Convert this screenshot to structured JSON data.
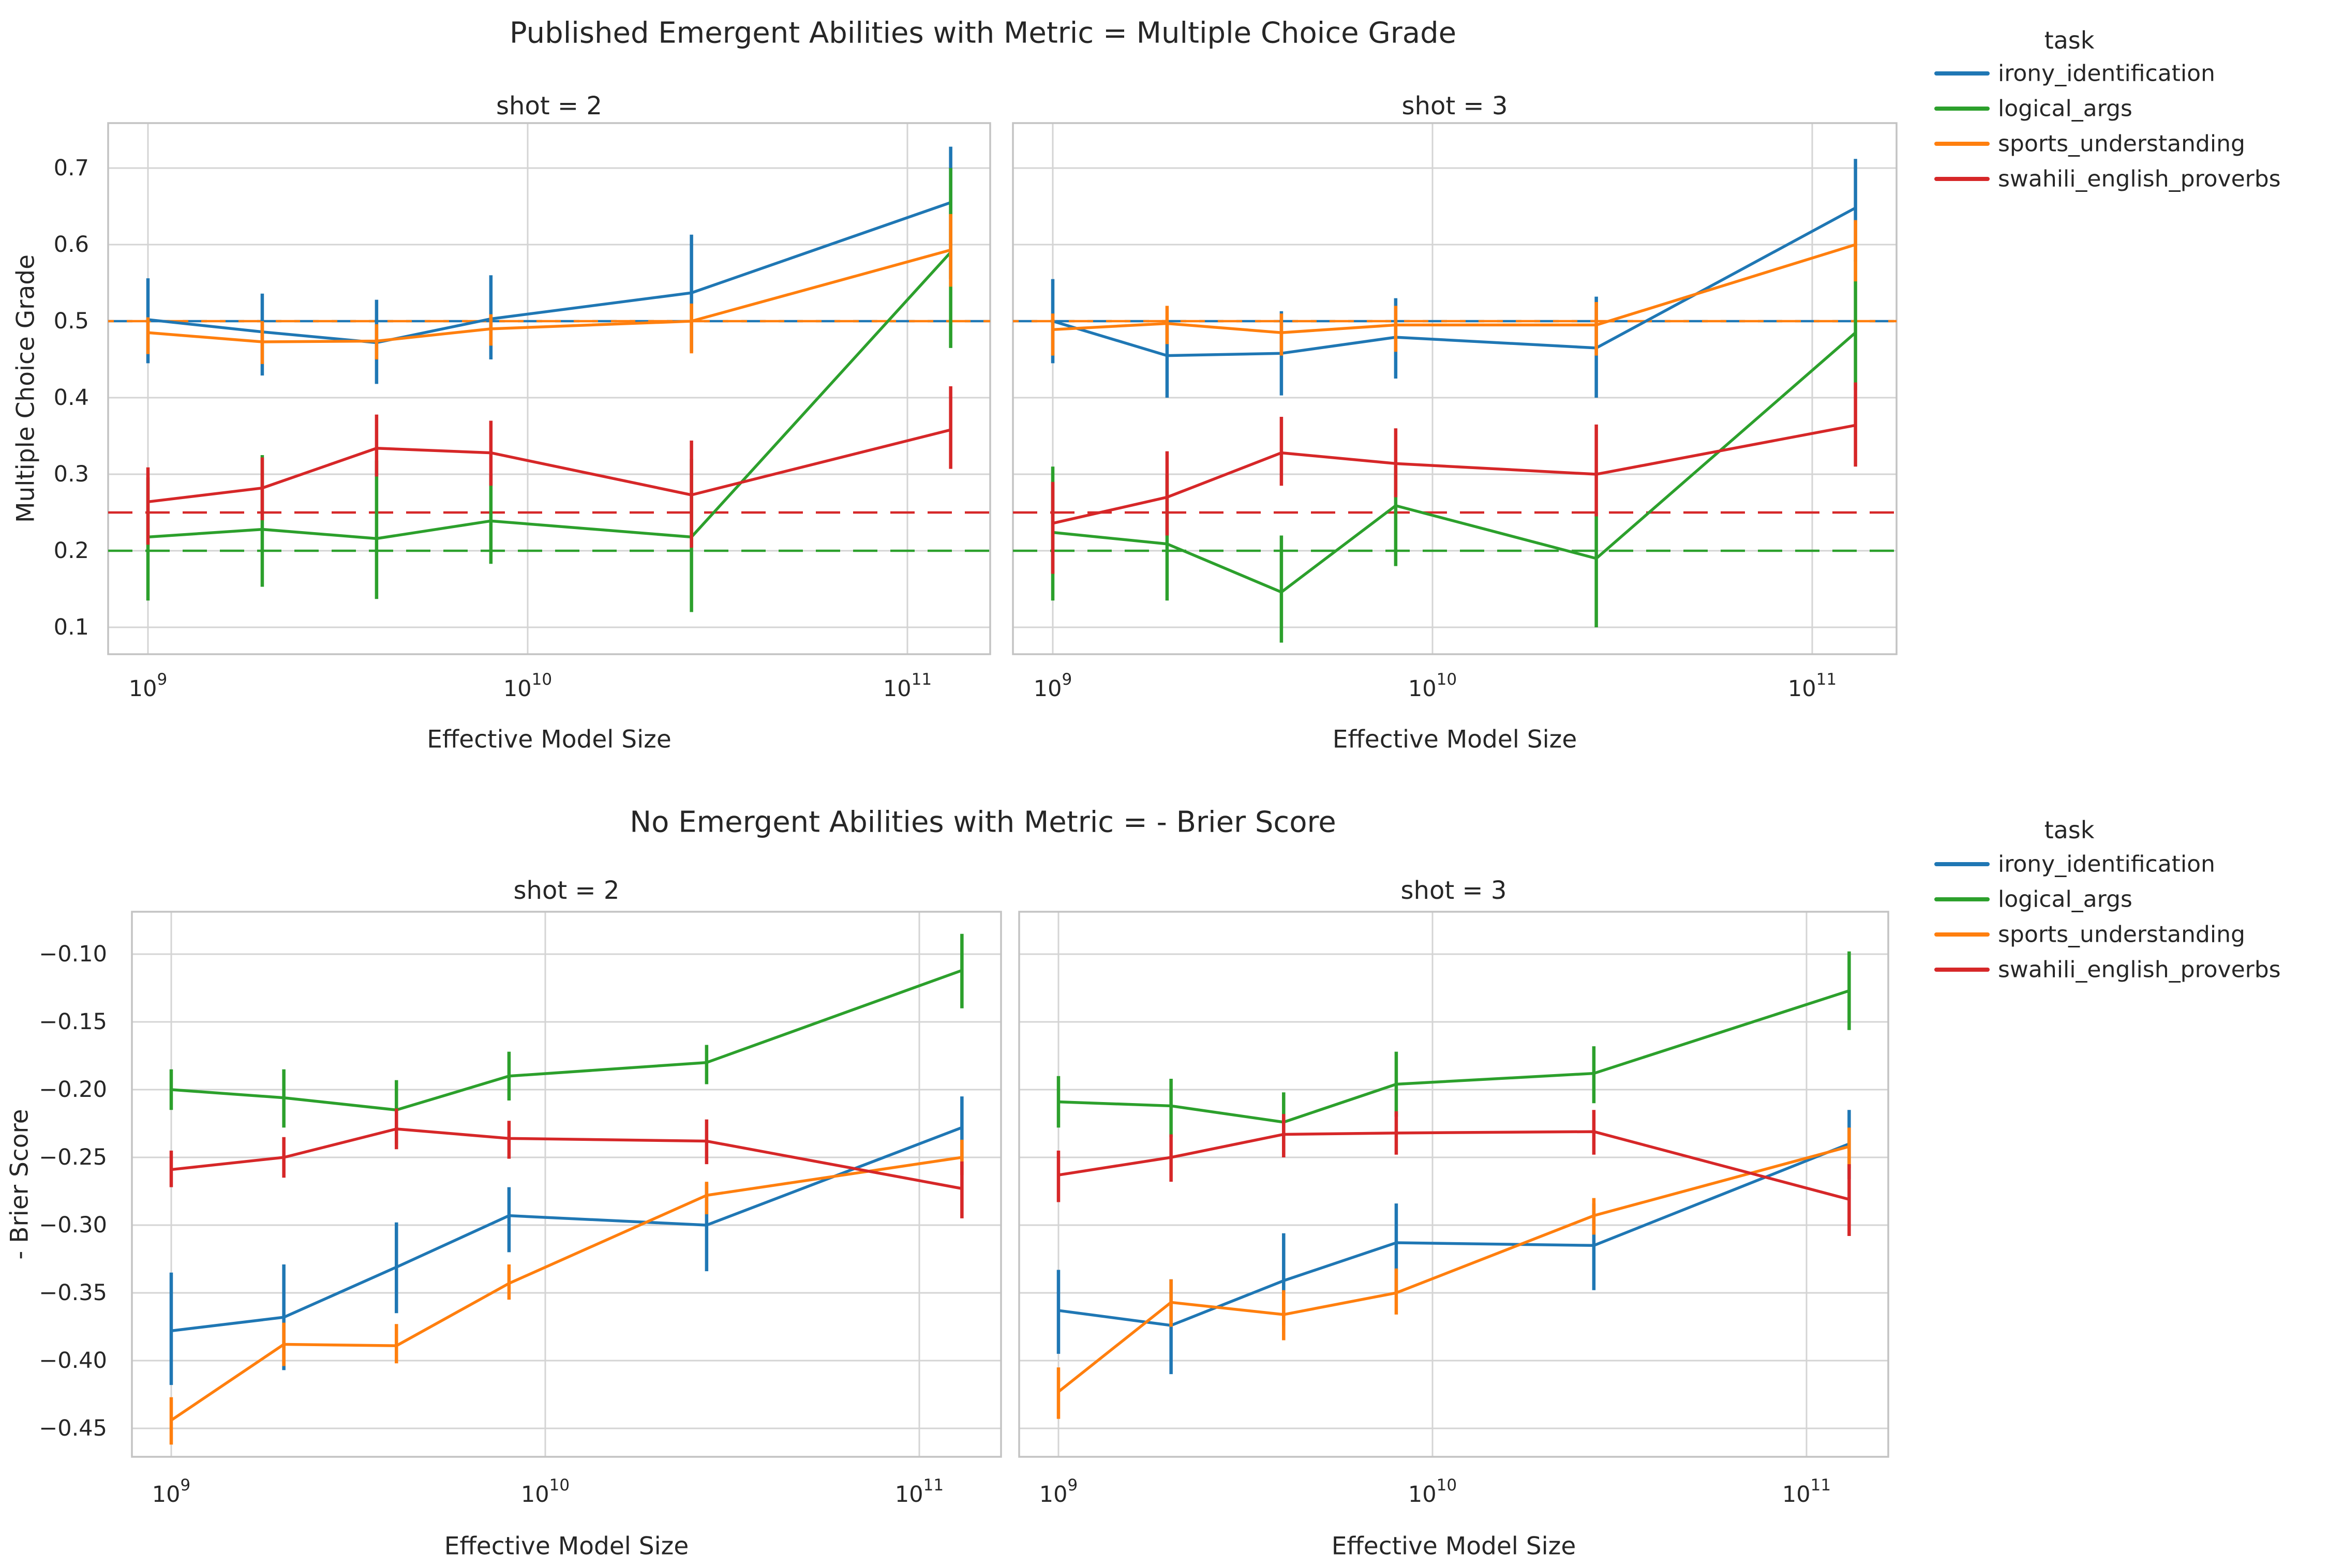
{
  "figure": {
    "background": "#ffffff",
    "text_color": "#262626",
    "grid_color": "#d4d4d4",
    "spine_color": "#c3c3c3"
  },
  "palette": {
    "irony_identification": "#1f77b4",
    "logical_args": "#2ca02c",
    "sports_understanding": "#ff7f0e",
    "swahili_english_proverbs": "#d62728"
  },
  "legend": {
    "title": "task",
    "items": [
      "irony_identification",
      "logical_args",
      "sports_understanding",
      "swahili_english_proverbs"
    ]
  },
  "xaxis": {
    "label": "Effective Model Size",
    "tick_labels": [
      "10^9",
      "10^10",
      "10^11"
    ],
    "tick_logs": [
      9,
      10,
      11
    ]
  },
  "chart_data": [
    {
      "type": "line",
      "title": "Published Emergent Abilities with Metric = Multiple Choice Grade",
      "ylabel": "Multiple Choice Grade",
      "xlabel": "Effective Model Size",
      "x": [
        1000000000,
        2000000000,
        4000000000,
        8000000000,
        27000000000,
        130000000000
      ],
      "ylim": [
        0.065,
        0.759
      ],
      "yticks": [
        0.1,
        0.2,
        0.3,
        0.4,
        0.5,
        0.6,
        0.7
      ],
      "ytick_labels": [
        "0.1",
        "0.2",
        "0.3",
        "0.4",
        "0.5",
        "0.6",
        "0.7"
      ],
      "grid": true,
      "legend_position": "upper right outside",
      "baselines": [
        {
          "series": "irony_identification",
          "value": 0.5
        },
        {
          "series": "sports_understanding",
          "value": 0.5
        },
        {
          "series": "swahili_english_proverbs",
          "value": 0.25
        },
        {
          "series": "logical_args",
          "value": 0.2
        }
      ],
      "panels": [
        {
          "title": "shot = 2",
          "series": [
            {
              "name": "irony_identification",
              "y": [
                0.502,
                0.486,
                0.472,
                0.503,
                0.537,
                0.655
              ],
              "err_lo": [
                0.445,
                0.429,
                0.418,
                0.45,
                0.46,
                0.555
              ],
              "err_hi": [
                0.556,
                0.536,
                0.528,
                0.56,
                0.613,
                0.728
              ]
            },
            {
              "name": "logical_args",
              "y": [
                0.218,
                0.228,
                0.216,
                0.239,
                0.218,
                0.59
              ],
              "err_lo": [
                0.135,
                0.153,
                0.137,
                0.183,
                0.12,
                0.465
              ],
              "err_hi": [
                0.296,
                0.325,
                0.318,
                0.3,
                0.32,
                0.7
              ]
            },
            {
              "name": "sports_understanding",
              "y": [
                0.485,
                0.473,
                0.474,
                0.49,
                0.5,
                0.593
              ],
              "err_lo": [
                0.457,
                0.444,
                0.45,
                0.468,
                0.458,
                0.545
              ],
              "err_hi": [
                0.505,
                0.5,
                0.496,
                0.509,
                0.523,
                0.64
              ]
            },
            {
              "name": "swahili_english_proverbs",
              "y": [
                0.264,
                0.282,
                0.334,
                0.328,
                0.273,
                0.358
              ],
              "err_lo": [
                0.208,
                0.24,
                0.297,
                0.285,
                0.204,
                0.307
              ],
              "err_hi": [
                0.309,
                0.322,
                0.378,
                0.37,
                0.344,
                0.415
              ]
            }
          ]
        },
        {
          "title": "shot = 3",
          "series": [
            {
              "name": "irony_identification",
              "y": [
                0.5,
                0.455,
                0.458,
                0.479,
                0.465,
                0.648
              ],
              "err_lo": [
                0.445,
                0.4,
                0.403,
                0.425,
                0.4,
                0.578
              ],
              "err_hi": [
                0.555,
                0.5,
                0.513,
                0.53,
                0.532,
                0.712
              ]
            },
            {
              "name": "logical_args",
              "y": [
                0.224,
                0.209,
                0.146,
                0.259,
                0.19,
                0.485
              ],
              "err_lo": [
                0.135,
                0.135,
                0.08,
                0.18,
                0.1,
                0.41
              ],
              "err_hi": [
                0.31,
                0.3,
                0.22,
                0.31,
                0.25,
                0.58
              ]
            },
            {
              "name": "sports_understanding",
              "y": [
                0.489,
                0.497,
                0.485,
                0.495,
                0.495,
                0.6
              ],
              "err_lo": [
                0.455,
                0.47,
                0.455,
                0.46,
                0.455,
                0.552
              ],
              "err_hi": [
                0.51,
                0.52,
                0.51,
                0.52,
                0.525,
                0.632
              ]
            },
            {
              "name": "swahili_english_proverbs",
              "y": [
                0.236,
                0.27,
                0.328,
                0.314,
                0.3,
                0.364
              ],
              "err_lo": [
                0.17,
                0.22,
                0.285,
                0.27,
                0.245,
                0.31
              ],
              "err_hi": [
                0.29,
                0.33,
                0.375,
                0.36,
                0.365,
                0.42
              ]
            }
          ]
        }
      ]
    },
    {
      "type": "line",
      "title": "No Emergent Abilities with Metric = - Brier Score",
      "ylabel": "- Brier Score",
      "xlabel": "Effective Model Size",
      "x": [
        1000000000,
        2000000000,
        4000000000,
        8000000000,
        27000000000,
        130000000000
      ],
      "ylim": [
        -0.471,
        -0.069
      ],
      "yticks": [
        -0.1,
        -0.15,
        -0.2,
        -0.25,
        -0.3,
        -0.35,
        -0.4,
        -0.45
      ],
      "ytick_labels": [
        "−0.10",
        "−0.15",
        "−0.20",
        "−0.25",
        "−0.30",
        "−0.35",
        "−0.40",
        "−0.45"
      ],
      "grid": true,
      "legend_position": "upper right outside",
      "baselines": [],
      "panels": [
        {
          "title": "shot = 2",
          "series": [
            {
              "name": "irony_identification",
              "y": [
                -0.378,
                -0.368,
                -0.331,
                -0.293,
                -0.3,
                -0.228
              ],
              "err_lo": [
                -0.418,
                -0.407,
                -0.365,
                -0.32,
                -0.334,
                -0.252
              ],
              "err_hi": [
                -0.335,
                -0.329,
                -0.298,
                -0.272,
                -0.269,
                -0.205
              ]
            },
            {
              "name": "logical_args",
              "y": [
                -0.2,
                -0.206,
                -0.215,
                -0.19,
                -0.18,
                -0.112
              ],
              "err_lo": [
                -0.215,
                -0.228,
                -0.24,
                -0.208,
                -0.196,
                -0.14
              ],
              "err_hi": [
                -0.185,
                -0.185,
                -0.193,
                -0.172,
                -0.167,
                -0.085
              ]
            },
            {
              "name": "sports_understanding",
              "y": [
                -0.444,
                -0.388,
                -0.389,
                -0.343,
                -0.278,
                -0.25
              ],
              "err_lo": [
                -0.462,
                -0.404,
                -0.402,
                -0.355,
                -0.292,
                -0.263
              ],
              "err_hi": [
                -0.427,
                -0.372,
                -0.373,
                -0.329,
                -0.268,
                -0.237
              ]
            },
            {
              "name": "swahili_english_proverbs",
              "y": [
                -0.259,
                -0.25,
                -0.229,
                -0.236,
                -0.238,
                -0.273
              ],
              "err_lo": [
                -0.272,
                -0.265,
                -0.244,
                -0.251,
                -0.255,
                -0.295
              ],
              "err_hi": [
                -0.245,
                -0.235,
                -0.214,
                -0.223,
                -0.222,
                -0.253
              ]
            }
          ]
        },
        {
          "title": "shot = 3",
          "series": [
            {
              "name": "irony_identification",
              "y": [
                -0.363,
                -0.374,
                -0.341,
                -0.313,
                -0.315,
                -0.24
              ],
              "err_lo": [
                -0.395,
                -0.41,
                -0.374,
                -0.35,
                -0.348,
                -0.266
              ],
              "err_hi": [
                -0.333,
                -0.34,
                -0.306,
                -0.284,
                -0.284,
                -0.215
              ]
            },
            {
              "name": "logical_args",
              "y": [
                -0.209,
                -0.212,
                -0.224,
                -0.196,
                -0.188,
                -0.127
              ],
              "err_lo": [
                -0.228,
                -0.235,
                -0.248,
                -0.22,
                -0.21,
                -0.156
              ],
              "err_hi": [
                -0.19,
                -0.192,
                -0.202,
                -0.172,
                -0.168,
                -0.098
              ]
            },
            {
              "name": "sports_understanding",
              "y": [
                -0.423,
                -0.357,
                -0.366,
                -0.35,
                -0.293,
                -0.242
              ],
              "err_lo": [
                -0.443,
                -0.375,
                -0.385,
                -0.366,
                -0.307,
                -0.258
              ],
              "err_hi": [
                -0.405,
                -0.34,
                -0.348,
                -0.332,
                -0.28,
                -0.228
              ]
            },
            {
              "name": "swahili_english_proverbs",
              "y": [
                -0.263,
                -0.25,
                -0.233,
                -0.232,
                -0.231,
                -0.281
              ],
              "err_lo": [
                -0.283,
                -0.268,
                -0.25,
                -0.248,
                -0.248,
                -0.308
              ],
              "err_hi": [
                -0.245,
                -0.233,
                -0.218,
                -0.216,
                -0.215,
                -0.255
              ]
            }
          ]
        }
      ]
    }
  ]
}
